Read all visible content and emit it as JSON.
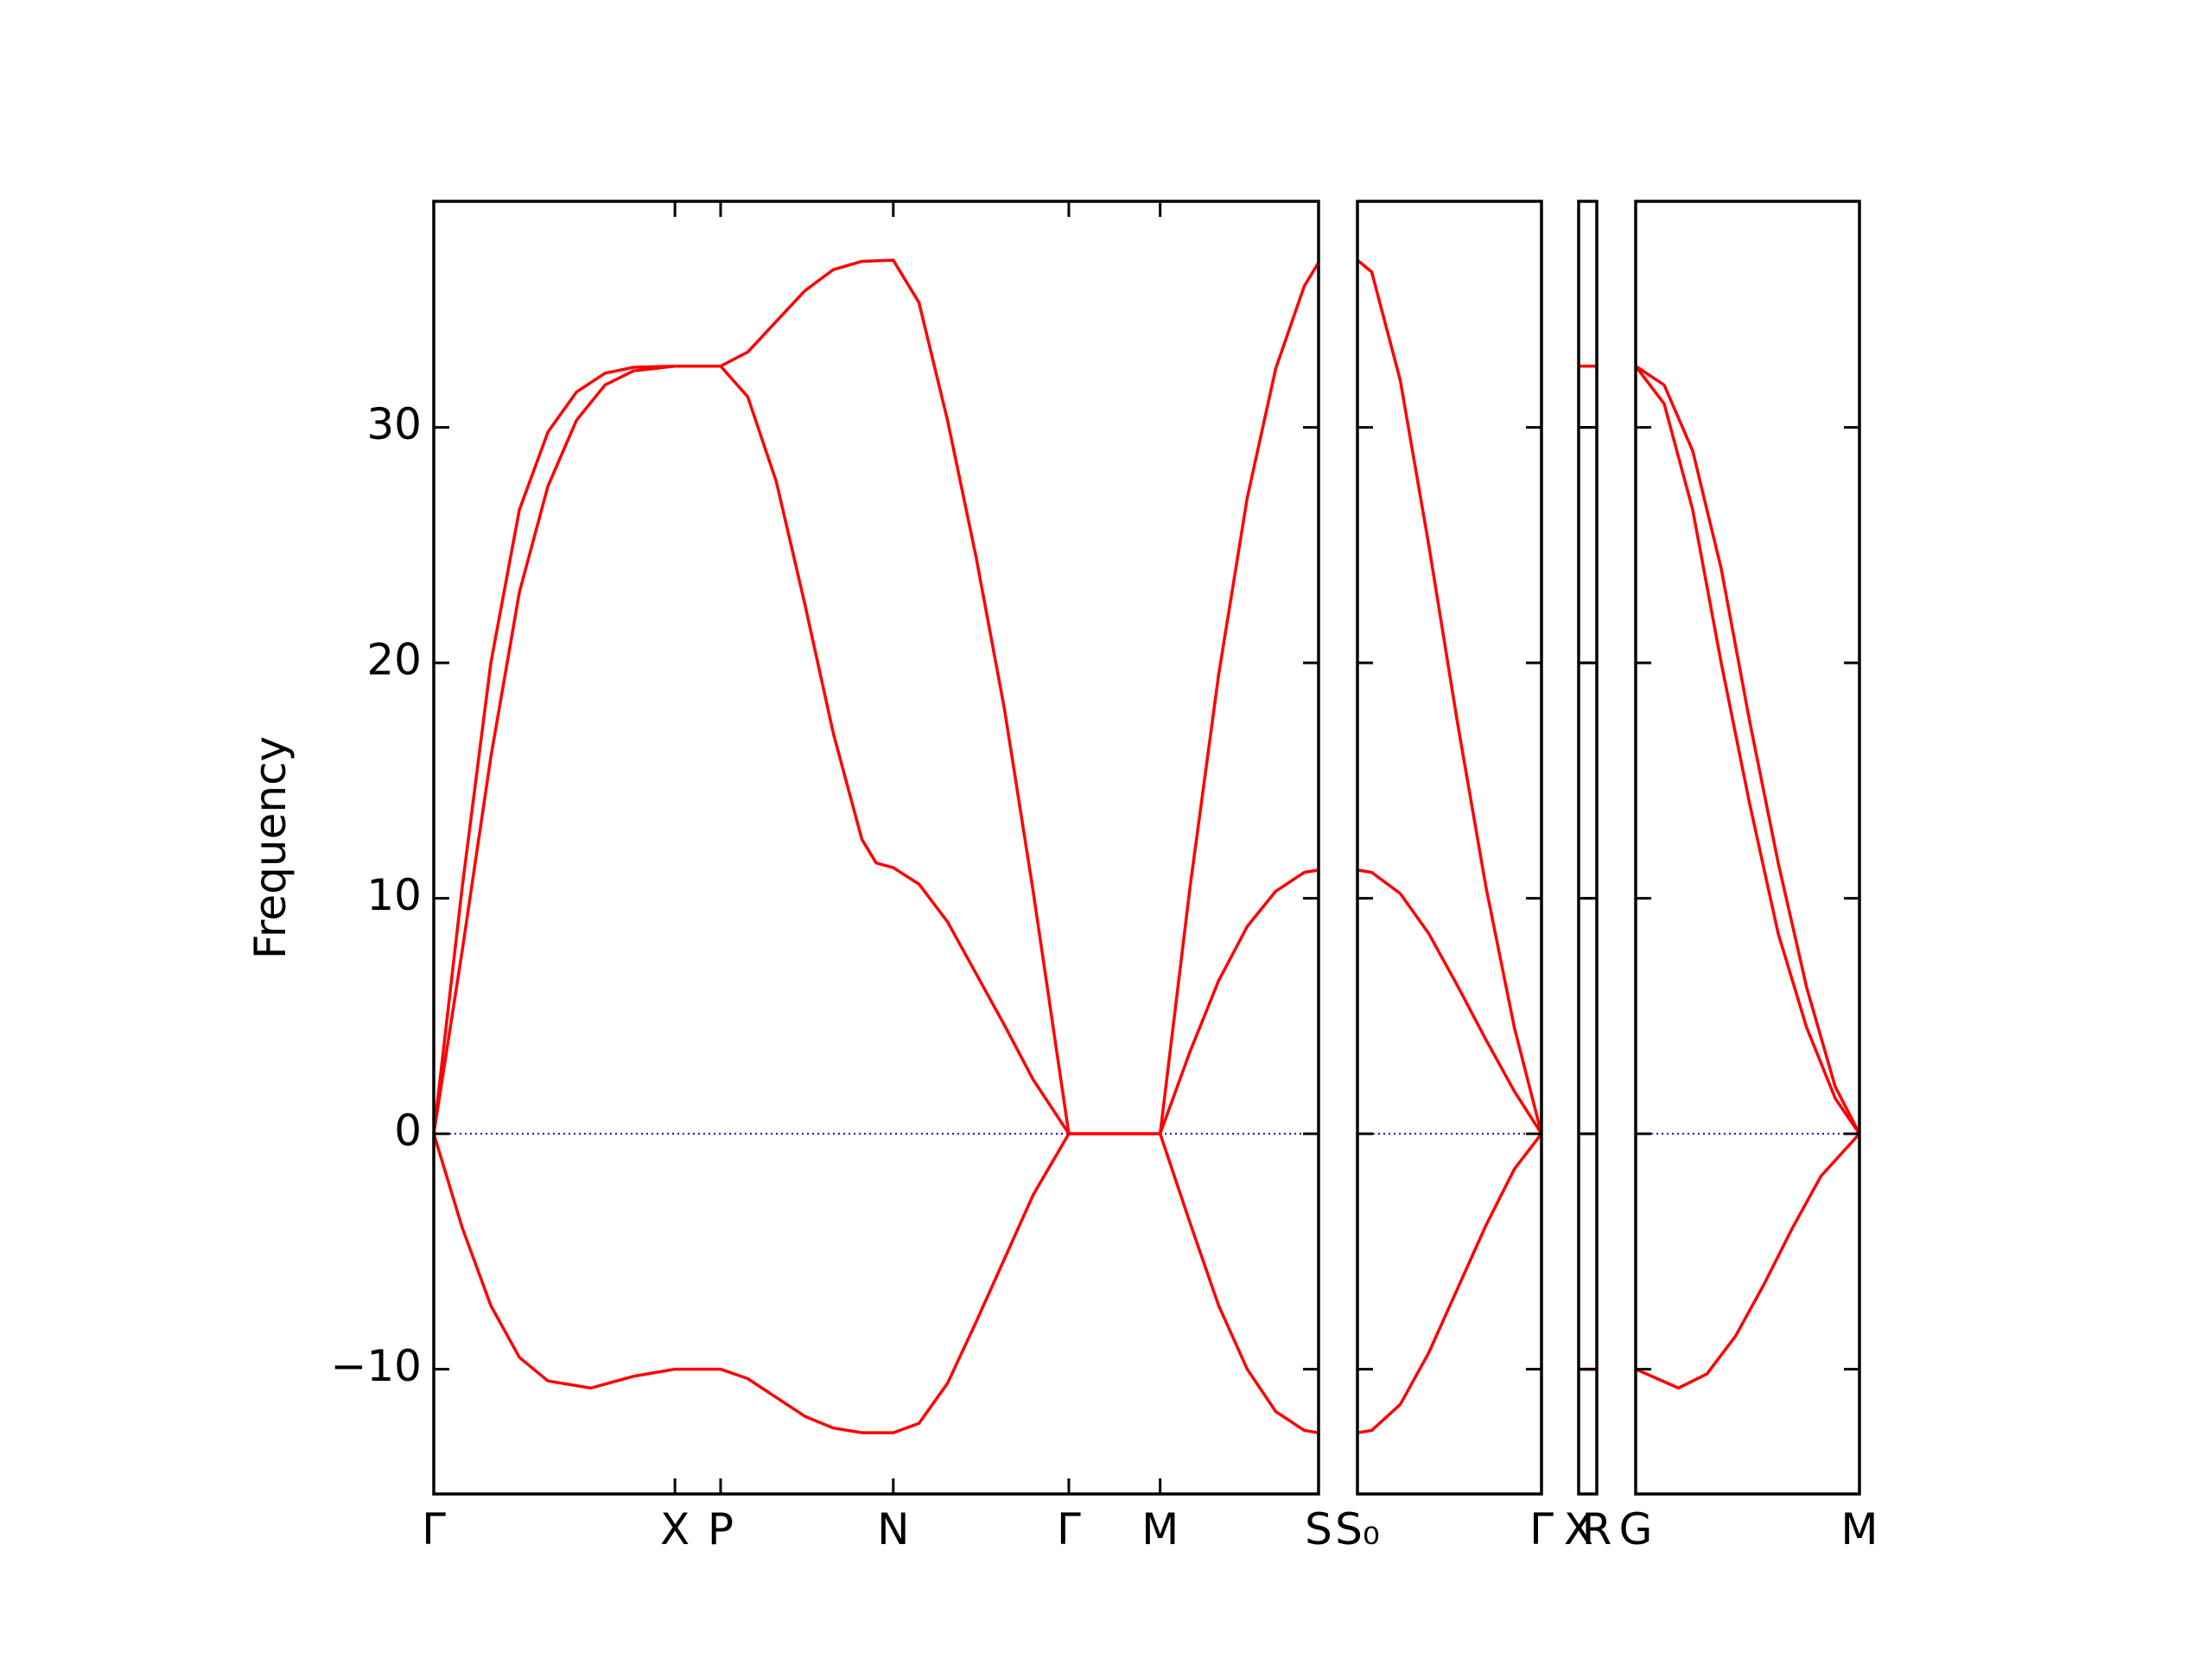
{
  "chart_data": [
    {
      "type": "line",
      "ylabel": "Frequency",
      "xlim": [
        0,
        6.2
      ],
      "ylim": [
        -15.3,
        39.6
      ],
      "yticks": [
        {
          "value": -10,
          "label": "−10"
        },
        0,
        10,
        20,
        30
      ],
      "xticks": [
        {
          "value": 0,
          "label": "Γ"
        },
        {
          "value": 1.69,
          "label": "X"
        },
        {
          "value": 2.01,
          "label": "P"
        },
        {
          "value": 3.22,
          "label": "N"
        },
        {
          "value": 4.45,
          "label": "Γ"
        },
        {
          "value": 5.09,
          "label": "M"
        },
        {
          "value": 6.2,
          "label": "S"
        }
      ],
      "zero_line_color": "#0000ff",
      "series": [
        {
          "color": "#ff0000",
          "x": [
            0,
            0.2,
            0.4,
            0.6,
            0.8,
            1.0,
            1.2,
            1.4,
            1.69,
            2.01,
            2.2,
            2.4,
            2.6,
            2.8,
            3.0,
            3.22,
            3.4,
            3.6,
            3.8,
            4.0,
            4.2,
            4.45,
            5.09,
            5.3,
            5.5,
            5.7,
            5.9,
            6.1,
            6.2
          ],
          "values": [
            0,
            10.5,
            20,
            26.5,
            29.8,
            31.5,
            32.3,
            32.55,
            32.6,
            32.6,
            33.2,
            34.5,
            35.8,
            36.7,
            37.05,
            37.1,
            35.3,
            30.3,
            24.5,
            18,
            10.3,
            0,
            0,
            10.5,
            19.5,
            27,
            32.5,
            36,
            37
          ]
        },
        {
          "color": "#ff0000",
          "x": [
            0,
            0.2,
            0.4,
            0.6,
            0.8,
            1.0,
            1.2,
            1.4,
            1.69,
            2.01,
            2.2,
            2.4,
            2.6,
            2.8,
            3.0,
            3.1,
            3.22,
            3.4,
            3.6,
            3.8,
            4.0,
            4.2,
            4.45,
            5.09,
            5.3,
            5.5,
            5.7,
            5.9,
            6.1,
            6.2
          ],
          "values": [
            0,
            7.8,
            16,
            23,
            27.5,
            30.3,
            31.8,
            32.4,
            32.6,
            32.6,
            31.3,
            27.7,
            22.5,
            17,
            12.5,
            11.5,
            11.3,
            10.6,
            9,
            6.8,
            4.6,
            2.3,
            0,
            0,
            3.5,
            6.5,
            8.8,
            10.3,
            11.1,
            11.2
          ]
        },
        {
          "color": "#ff0000",
          "x": [
            0,
            0.2,
            0.4,
            0.6,
            0.8,
            1.1,
            1.4,
            1.69,
            2.01,
            2.2,
            2.4,
            2.6,
            2.8,
            3.0,
            3.22,
            3.4,
            3.6,
            3.8,
            4.0,
            4.2,
            4.45,
            5.09,
            5.3,
            5.5,
            5.7,
            5.9,
            6.1,
            6.2
          ],
          "values": [
            0,
            -4,
            -7.3,
            -9.5,
            -10.5,
            -10.8,
            -10.3,
            -10,
            -10,
            -10.4,
            -11.2,
            -12,
            -12.5,
            -12.7,
            -12.7,
            -12.3,
            -10.6,
            -8,
            -5.3,
            -2.6,
            0,
            0,
            -3.8,
            -7.3,
            -10,
            -11.8,
            -12.6,
            -12.7
          ]
        }
      ]
    },
    {
      "type": "line",
      "xlim": [
        0,
        1.29
      ],
      "ylim": [
        -15.3,
        39.6
      ],
      "yticks": [
        -10,
        0,
        10,
        20,
        30
      ],
      "xticks": [
        {
          "value": 0,
          "label": "S₀"
        },
        {
          "value": 1.29,
          "label": "Γ"
        }
      ],
      "zero_line_color": "#0000ff",
      "series": [
        {
          "color": "#ff0000",
          "x": [
            0,
            0.1,
            0.3,
            0.5,
            0.7,
            0.9,
            1.1,
            1.29
          ],
          "values": [
            37.1,
            36.6,
            32,
            25,
            17.5,
            10.5,
            4.5,
            0
          ]
        },
        {
          "color": "#ff0000",
          "x": [
            0,
            0.1,
            0.3,
            0.5,
            0.7,
            0.9,
            1.1,
            1.29
          ],
          "values": [
            11.2,
            11.1,
            10.2,
            8.5,
            6.3,
            4,
            1.8,
            0
          ]
        },
        {
          "color": "#ff0000",
          "x": [
            0,
            0.1,
            0.3,
            0.5,
            0.7,
            0.9,
            1.1,
            1.29
          ],
          "values": [
            -12.7,
            -12.6,
            -11.5,
            -9.3,
            -6.6,
            -3.9,
            -1.5,
            0
          ]
        }
      ]
    },
    {
      "type": "line",
      "xlim": [
        0,
        0.13
      ],
      "ylim": [
        -15.3,
        39.6
      ],
      "yticks": [
        -10,
        0,
        10,
        20,
        30
      ],
      "xticks": [
        {
          "value": 0,
          "label": "X"
        },
        {
          "value": 0.13,
          "label": "R"
        }
      ],
      "zero_line_color": "#0000ff",
      "series": [
        {
          "color": "#ff0000",
          "x": [
            0,
            0.13
          ],
          "values": [
            32.6,
            32.6
          ]
        },
        {
          "color": "#ff0000",
          "x": [
            0,
            0.13
          ],
          "values": [
            32.6,
            32.6
          ]
        },
        {
          "color": "#ff0000",
          "x": [
            0,
            0.13
          ],
          "values": [
            -10,
            -10
          ]
        }
      ]
    },
    {
      "type": "line",
      "xlim": [
        0,
        1.57
      ],
      "ylim": [
        -15.3,
        39.6
      ],
      "yticks": [
        -10,
        0,
        10,
        20,
        30
      ],
      "xticks": [
        {
          "value": 0,
          "label": "G"
        },
        {
          "value": 1.57,
          "label": "M"
        }
      ],
      "zero_line_color": "#0000ff",
      "series": [
        {
          "color": "#ff0000",
          "x": [
            0,
            0.2,
            0.4,
            0.6,
            0.8,
            1.0,
            1.2,
            1.4,
            1.57
          ],
          "values": [
            32.6,
            31.8,
            29,
            24,
            17.5,
            11.5,
            6.2,
            2,
            0
          ]
        },
        {
          "color": "#ff0000",
          "x": [
            0,
            0.2,
            0.4,
            0.6,
            0.8,
            1.0,
            1.2,
            1.4,
            1.57
          ],
          "values": [
            32.6,
            31,
            26.5,
            20,
            14,
            8.5,
            4.5,
            1.5,
            0
          ]
        },
        {
          "color": "#ff0000",
          "x": [
            0,
            0.15,
            0.3,
            0.5,
            0.7,
            0.9,
            1.1,
            1.3,
            1.57
          ],
          "values": [
            -10,
            -10.4,
            -10.8,
            -10.2,
            -8.6,
            -6.4,
            -4,
            -1.8,
            0
          ]
        }
      ]
    }
  ]
}
